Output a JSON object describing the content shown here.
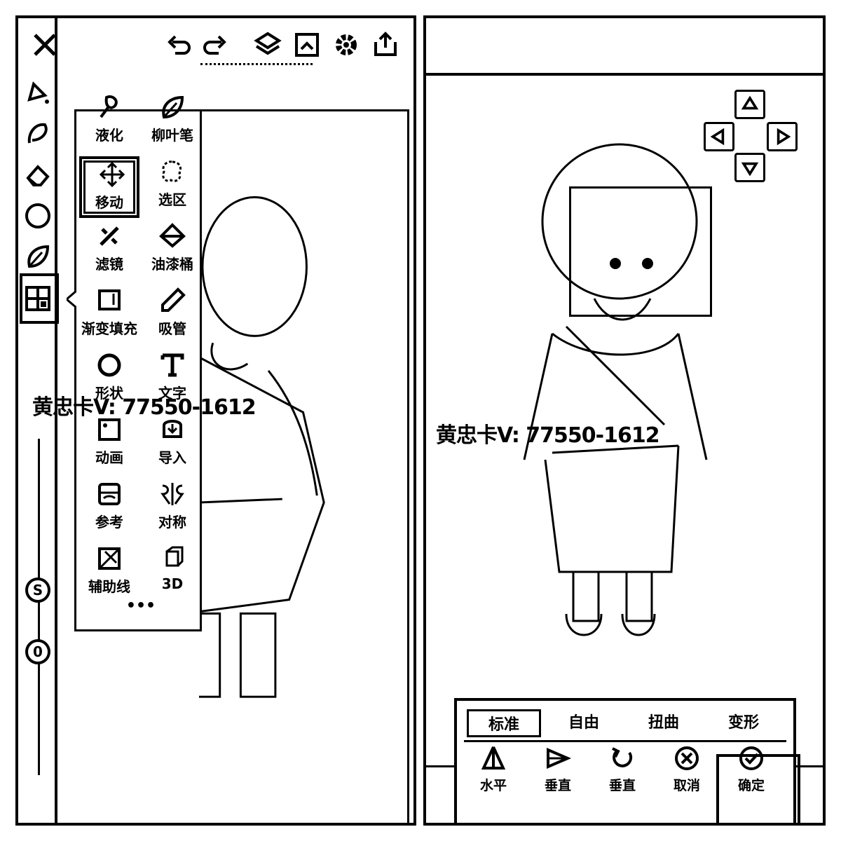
{
  "left": {
    "toolbar": {
      "close_icon": "close-icon",
      "undo_icon": "undo-icon",
      "redo_icon": "redo-icon",
      "layers_icon": "layers-icon",
      "gallery_icon": "gallery-icon",
      "settings_icon": "gear-icon",
      "export_icon": "export-icon"
    },
    "rail": [
      "brush-icon",
      "smudge-icon",
      "eraser-icon",
      "color-circle-icon",
      "leaf-brush-icon",
      "grid-tools-icon"
    ],
    "rail_bottom": [
      "s-icon",
      "zero-icon"
    ],
    "tools": [
      {
        "label": "液化",
        "icon": "liquify-icon"
      },
      {
        "label": "柳叶笔",
        "icon": "leaf-pen-icon"
      },
      {
        "label": "移动",
        "icon": "move-icon",
        "selected": true
      },
      {
        "label": "选区",
        "icon": "selection-icon"
      },
      {
        "label": "滤镜",
        "icon": "filter-icon"
      },
      {
        "label": "油漆桶",
        "icon": "paint-bucket-icon"
      },
      {
        "label": "渐变填充",
        "icon": "gradient-icon"
      },
      {
        "label": "吸管",
        "icon": "eyedropper-icon"
      },
      {
        "label": "形状",
        "icon": "shape-icon"
      },
      {
        "label": "文字",
        "icon": "text-icon"
      },
      {
        "label": "动画",
        "icon": "animation-icon"
      },
      {
        "label": "导入",
        "icon": "import-icon"
      },
      {
        "label": "参考",
        "icon": "reference-icon"
      },
      {
        "label": "对称",
        "icon": "symmetry-icon"
      },
      {
        "label": "辅助线",
        "icon": "guides-icon"
      },
      {
        "label": "3D",
        "icon": "3d-icon"
      }
    ],
    "more": "•••",
    "watermark": "黄忠卡V: 77550-1612"
  },
  "right": {
    "watermark": "黄忠卡V: 77550-1612",
    "tabs": [
      "标准",
      "自由",
      "扭曲",
      "变形"
    ],
    "active_tab": "标准",
    "actions": [
      {
        "label": "水平",
        "icon": "flip-horizontal-icon"
      },
      {
        "label": "垂直",
        "icon": "flip-vertical-icon"
      },
      {
        "label": "垂直",
        "icon": "rotate-icon"
      },
      {
        "label": "取消",
        "icon": "cancel-icon"
      },
      {
        "label": "确定",
        "icon": "confirm-icon"
      }
    ]
  }
}
